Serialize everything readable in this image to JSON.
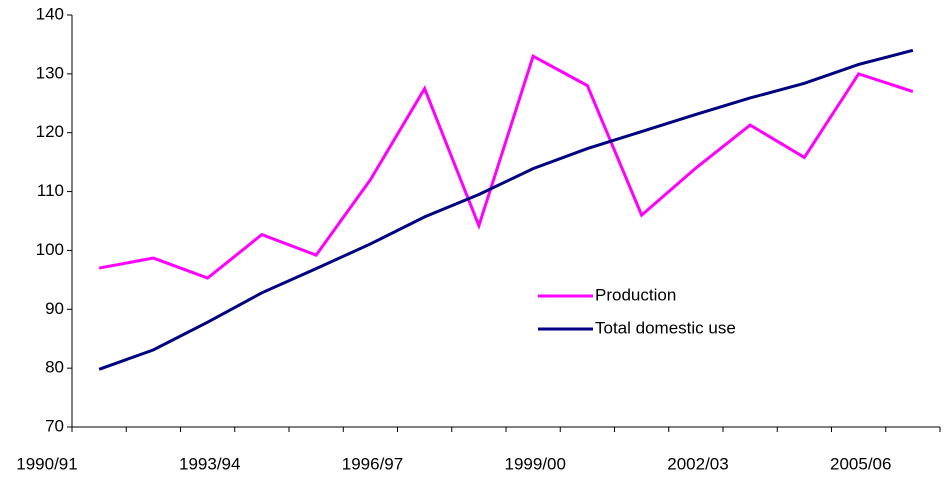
{
  "chart_data": {
    "type": "line",
    "categories": [
      "1990/91",
      null,
      null,
      "1993/94",
      null,
      null,
      "1996/97",
      null,
      null,
      "1999/00",
      null,
      null,
      "2002/03",
      null,
      null,
      "2005/06"
    ],
    "series": [
      {
        "name": "Production",
        "color": "#ff00ff",
        "values": [
          97,
          98.7,
          95.3,
          102.7,
          99.2,
          112,
          127.5,
          104.2,
          133,
          128,
          106,
          114,
          121.3,
          115.8,
          130,
          127
        ]
      },
      {
        "name": "Total domestic use",
        "color": "#000080",
        "values": [
          79.8,
          83.1,
          87.8,
          92.8,
          96.9,
          101.1,
          105.7,
          109.5,
          113.9,
          117.3,
          120.2,
          123.1,
          125.9,
          128.4,
          131.6,
          134
        ]
      }
    ],
    "ylim": [
      70,
      140
    ],
    "yticks": [
      70,
      80,
      90,
      100,
      110,
      120,
      130,
      140
    ]
  }
}
